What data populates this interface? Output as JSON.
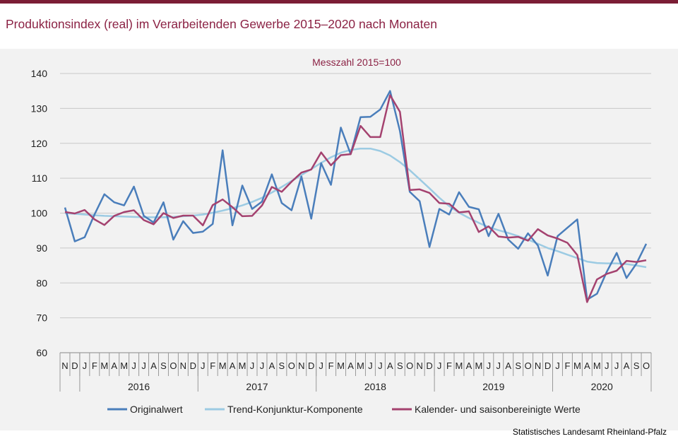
{
  "header": {
    "title": "Produktionsindex (real) im Verarbeitenden Gewerbe 2015–2020 nach Monaten"
  },
  "footer": {
    "source": "Statistisches Landesamt Rheinland-Pfalz"
  },
  "colors": {
    "accent": "#7b1e35",
    "title_text": "#8b2244",
    "plot_background": "#f2f2f2",
    "gridline": "#c8c8c8"
  },
  "chart_data": {
    "type": "line",
    "title": "",
    "subtitle": "Messzahl 2015=100",
    "xlabel": "",
    "ylabel": "",
    "ylim": [
      60,
      140
    ],
    "yticks": [
      60,
      70,
      80,
      90,
      100,
      110,
      120,
      130,
      140
    ],
    "grid": true,
    "legend_position": "bottom",
    "categories": [
      "N",
      "D",
      "J",
      "F",
      "M",
      "A",
      "M",
      "J",
      "J",
      "A",
      "S",
      "O",
      "N",
      "D",
      "J",
      "F",
      "M",
      "A",
      "M",
      "J",
      "J",
      "A",
      "S",
      "O",
      "N",
      "D",
      "J",
      "F",
      "M",
      "A",
      "M",
      "J",
      "J",
      "A",
      "S",
      "O",
      "N",
      "D",
      "J",
      "F",
      "M",
      "A",
      "M",
      "J",
      "J",
      "A",
      "S",
      "O",
      "N",
      "D",
      "J",
      "F",
      "M",
      "A",
      "M",
      "J",
      "J",
      "A",
      "S",
      "O"
    ],
    "year_groups": [
      {
        "label": "2016",
        "start": 2,
        "end": 13
      },
      {
        "label": "2017",
        "start": 14,
        "end": 25
      },
      {
        "label": "2018",
        "start": 26,
        "end": 37
      },
      {
        "label": "2019",
        "start": 38,
        "end": 49
      },
      {
        "label": "2020",
        "start": 50,
        "end": 59
      }
    ],
    "series": [
      {
        "name": "Originalwert",
        "color": "#4a7ebb",
        "values": [
          101.6,
          91.9,
          93.1,
          99.6,
          105.4,
          103.1,
          102.2,
          107.6,
          99.2,
          97.3,
          103.1,
          92.4,
          97.7,
          94.3,
          94.7,
          96.9,
          118.0,
          96.5,
          107.9,
          101.2,
          103.3,
          111.1,
          102.9,
          100.8,
          110.5,
          98.4,
          114.3,
          108.1,
          124.5,
          116.9,
          127.5,
          127.6,
          129.7,
          135.0,
          123.5,
          106.1,
          103.4,
          90.3,
          101.2,
          99.6,
          106.0,
          101.8,
          101.1,
          93.4,
          99.8,
          92.4,
          89.8,
          94.2,
          90.7,
          82.1,
          93.4,
          95.8,
          98.2,
          75.2,
          76.9,
          83.2,
          88.6,
          81.4,
          85.5,
          91.2
        ]
      },
      {
        "name": "Trend-Konjunktur-Komponente",
        "color": "#9ccbe3",
        "values": [
          100.0,
          99.8,
          99.6,
          99.4,
          99.2,
          99.1,
          99.0,
          98.9,
          98.8,
          98.8,
          98.8,
          98.9,
          99.1,
          99.3,
          99.6,
          100.1,
          100.7,
          101.4,
          102.2,
          103.2,
          104.4,
          105.9,
          107.5,
          109.2,
          110.9,
          112.6,
          114.4,
          116.0,
          117.3,
          118.1,
          118.5,
          118.5,
          117.8,
          116.5,
          114.6,
          112.3,
          109.7,
          107.1,
          104.4,
          102.0,
          100.1,
          98.6,
          97.2,
          96.0,
          95.1,
          94.3,
          93.4,
          92.4,
          91.2,
          90.0,
          89.1,
          88.1,
          87.1,
          86.1,
          85.7,
          85.6,
          85.6,
          85.4,
          85.0,
          84.5
        ]
      },
      {
        "name": "Kalender- und saisonbereinigte Werte",
        "color": "#a4426f",
        "values": [
          100.3,
          99.9,
          100.9,
          98.2,
          96.6,
          99.2,
          100.3,
          100.8,
          98.0,
          96.8,
          100.0,
          98.6,
          99.3,
          99.3,
          96.5,
          102.3,
          103.9,
          101.7,
          99.1,
          99.2,
          102.2,
          107.5,
          106.1,
          109.0,
          111.6,
          112.5,
          117.4,
          113.7,
          116.6,
          116.9,
          125.0,
          121.8,
          121.8,
          133.8,
          129.0,
          106.6,
          106.8,
          105.8,
          102.9,
          102.7,
          100.2,
          100.5,
          94.6,
          96.2,
          93.3,
          93.0,
          93.2,
          92.1,
          95.4,
          93.6,
          92.7,
          91.5,
          88.0,
          74.5,
          81.0,
          82.6,
          83.5,
          86.3,
          86.0,
          86.5
        ]
      }
    ]
  }
}
